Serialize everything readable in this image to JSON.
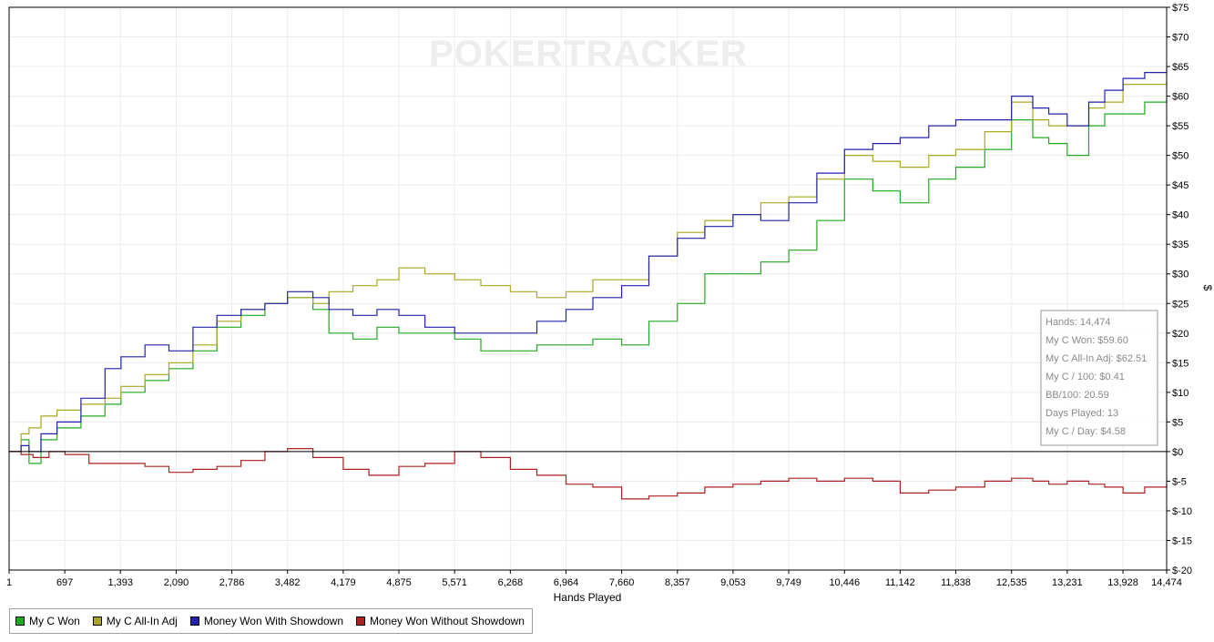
{
  "chart_data": {
    "type": "line",
    "watermark": "POKERTRACKER",
    "xlabel": "Hands Played",
    "ylabel": "$",
    "xlim": [
      1,
      14474
    ],
    "ylim": [
      -20,
      75
    ],
    "x_ticks": [
      1,
      697,
      1393,
      2090,
      2786,
      3482,
      4179,
      4875,
      5571,
      6268,
      6964,
      7660,
      8357,
      9053,
      9749,
      10446,
      11142,
      11838,
      12535,
      13231,
      13928,
      14474
    ],
    "x_tick_labels": [
      "1",
      "697",
      "1,393",
      "2,090",
      "2,786",
      "3,482",
      "4,179",
      "4,875",
      "5,571",
      "6,268",
      "6,964",
      "7,660",
      "8,357",
      "9,053",
      "9,749",
      "10,446",
      "11,142",
      "11,838",
      "12,535",
      "13,231",
      "13,928",
      "14,474"
    ],
    "y_ticks": [
      75,
      70,
      65,
      60,
      55,
      50,
      45,
      40,
      35,
      30,
      25,
      20,
      15,
      10,
      5,
      0,
      -5,
      -10,
      -15,
      -20
    ],
    "y_tick_labels": [
      "$75",
      "$70",
      "$65",
      "$60",
      "$55",
      "$50",
      "$45",
      "$40",
      "$35",
      "$30",
      "$25",
      "$20",
      "$15",
      "$10",
      "$5",
      "$0",
      "$-5",
      "$-10",
      "$-15",
      "$-20"
    ],
    "grid": true,
    "legend_position": "bottom-left",
    "series": [
      {
        "name": "My C Won",
        "color": "#22a822",
        "x": [
          1,
          150,
          250,
          400,
          600,
          900,
          1200,
          1400,
          1700,
          2000,
          2300,
          2600,
          2900,
          3200,
          3482,
          3800,
          4000,
          4300,
          4600,
          4875,
          5200,
          5571,
          5900,
          6268,
          6600,
          6964,
          7300,
          7660,
          8000,
          8357,
          8700,
          9053,
          9400,
          9749,
          10100,
          10446,
          10800,
          11142,
          11500,
          11838,
          12200,
          12535,
          12800,
          13000,
          13231,
          13500,
          13700,
          13928,
          14200,
          14474
        ],
        "values": [
          0,
          2,
          -2,
          2,
          4,
          6,
          8,
          10,
          12,
          14,
          17,
          21,
          23,
          25,
          26,
          24,
          20,
          19,
          21,
          20,
          20,
          19,
          17,
          17,
          18,
          18,
          19,
          18,
          22,
          25,
          30,
          30,
          32,
          34,
          39,
          46,
          44,
          42,
          46,
          48,
          51,
          56,
          53,
          52,
          50,
          55,
          57,
          57,
          59,
          59.6
        ]
      },
      {
        "name": "My C All-In Adj",
        "color": "#a8a822",
        "x": [
          1,
          150,
          250,
          400,
          600,
          900,
          1200,
          1400,
          1700,
          2000,
          2300,
          2600,
          2900,
          3200,
          3482,
          3800,
          4000,
          4300,
          4600,
          4875,
          5200,
          5571,
          5900,
          6268,
          6600,
          6964,
          7300,
          7660,
          8000,
          8357,
          8700,
          9053,
          9400,
          9749,
          10100,
          10446,
          10800,
          11142,
          11500,
          11838,
          12200,
          12535,
          12800,
          13000,
          13231,
          13500,
          13700,
          13928,
          14200,
          14474
        ],
        "values": [
          0,
          3,
          4,
          6,
          7,
          8,
          9,
          11,
          13,
          15,
          18,
          22,
          24,
          25,
          26,
          25,
          27,
          28,
          29,
          31,
          30,
          29,
          28,
          27,
          26,
          27,
          29,
          29,
          33,
          37,
          39,
          40,
          42,
          43,
          46,
          50,
          49,
          48,
          50,
          51,
          54,
          59,
          56,
          55,
          55,
          58,
          59,
          62,
          62,
          62.51
        ]
      },
      {
        "name": "Money Won With Showdown",
        "color": "#2222aa",
        "x": [
          1,
          150,
          250,
          400,
          600,
          900,
          1200,
          1400,
          1700,
          2000,
          2300,
          2600,
          2900,
          3200,
          3482,
          3800,
          4000,
          4300,
          4600,
          4875,
          5200,
          5571,
          5900,
          6268,
          6600,
          6964,
          7300,
          7660,
          8000,
          8357,
          8700,
          9053,
          9400,
          9749,
          10100,
          10446,
          10800,
          11142,
          11500,
          11838,
          12200,
          12535,
          12800,
          13000,
          13231,
          13500,
          13700,
          13928,
          14200,
          14474
        ],
        "values": [
          0,
          1,
          0,
          3,
          5,
          9,
          14,
          16,
          18,
          17,
          21,
          23,
          24,
          25,
          27,
          26,
          24,
          23,
          24,
          23,
          21,
          20,
          20,
          20,
          22,
          24,
          26,
          28,
          33,
          36,
          38,
          40,
          39,
          42,
          47,
          51,
          52,
          53,
          55,
          56,
          56,
          60,
          58,
          57,
          55,
          59,
          61,
          63,
          64,
          64.5
        ]
      },
      {
        "name": "Money Won Without Showdown",
        "color": "#aa2222",
        "x": [
          1,
          150,
          300,
          500,
          700,
          1000,
          1393,
          1700,
          2000,
          2300,
          2600,
          2900,
          3200,
          3482,
          3800,
          4179,
          4500,
          4875,
          5200,
          5571,
          5900,
          6268,
          6600,
          6964,
          7300,
          7660,
          8000,
          8357,
          8700,
          9053,
          9400,
          9749,
          10100,
          10446,
          10800,
          11142,
          11500,
          11838,
          12200,
          12535,
          12800,
          13000,
          13231,
          13500,
          13700,
          13928,
          14200,
          14474
        ],
        "values": [
          0,
          -0.5,
          -1,
          0,
          -0.5,
          -2,
          -2,
          -2.5,
          -3.5,
          -3,
          -2.5,
          -1.5,
          0,
          0.5,
          -1,
          -3,
          -4,
          -2.5,
          -2,
          0,
          -1,
          -3,
          -4,
          -5.5,
          -6,
          -8,
          -7.5,
          -7,
          -6,
          -5.5,
          -5,
          -4.5,
          -5,
          -4.5,
          -5,
          -7,
          -6.5,
          -6,
          -5,
          -4.5,
          -5,
          -5.5,
          -5,
          -5.5,
          -6,
          -7,
          -6,
          -5.5
        ]
      }
    ],
    "stats_box": {
      "lines": [
        "Hands: 14,474",
        "My C Won: $59.60",
        "My C All-In Adj: $62.51",
        "My C / 100: $0.41",
        "BB/100: 20.59",
        "Days Played: 13",
        "My C / Day: $4.58"
      ]
    }
  }
}
